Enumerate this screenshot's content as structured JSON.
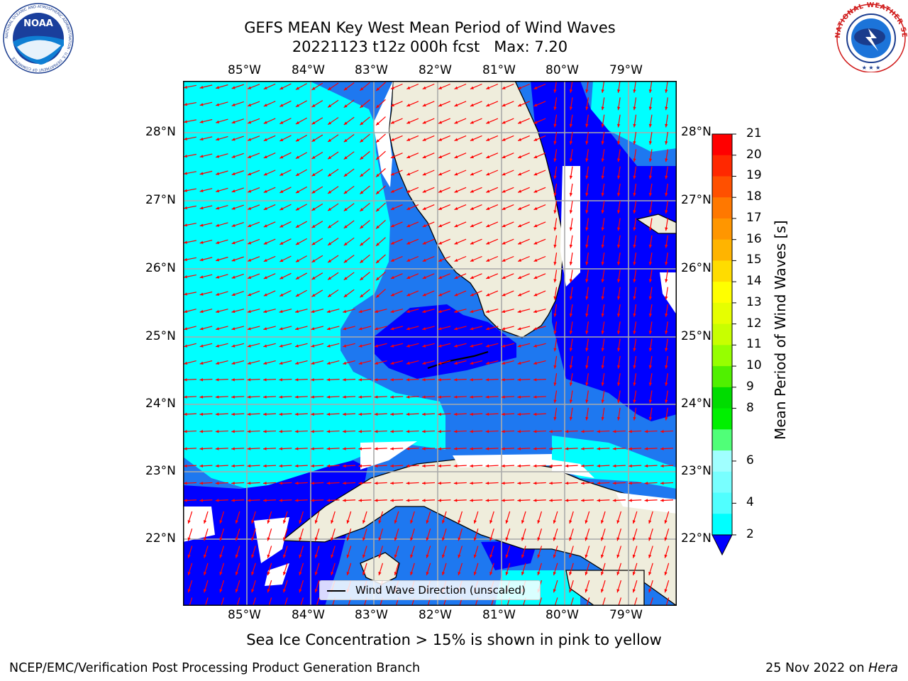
{
  "title": {
    "line1": "GEFS MEAN Key West Mean Period of Wind Waves",
    "line2": "20221123 t12z 000h fcst   Max: 7.20"
  },
  "map": {
    "lon_labels": [
      "85°W",
      "84°W",
      "83°W",
      "82°W",
      "81°W",
      "80°W",
      "79°W"
    ],
    "lat_labels": [
      "28°N",
      "27°N",
      "26°N",
      "25°N",
      "24°N",
      "23°N",
      "22°N"
    ],
    "legend_label": "Wind Wave Direction (unscaled)",
    "colors": {
      "land": "#efeddc",
      "cyan": "#00ffff",
      "mid_blue": "#1e78f0",
      "dark_blue": "#0000ff",
      "arrows": "#ff0000",
      "grid": "#aaaaaa",
      "coast": "#000000"
    }
  },
  "colorbar": {
    "label": "Mean Period of Wind Waves [s]",
    "ticks": [
      "21",
      "20",
      "19",
      "18",
      "17",
      "16",
      "15",
      "14",
      "13",
      "12",
      "11",
      "10",
      "9",
      "8",
      "6",
      "4",
      "2"
    ],
    "colors": [
      "#ff0000",
      "#ff2800",
      "#ff5000",
      "#ff7800",
      "#ff9600",
      "#ffb400",
      "#ffdc00",
      "#ffff00",
      "#e6ff00",
      "#c8ff00",
      "#96ff00",
      "#50f000",
      "#00dc00",
      "#00f000",
      "#50ff78",
      "#a0ffff",
      "#78ffff",
      "#50ffff",
      "#00ffff",
      "#1e78f0"
    ],
    "under_color": "#0000ff"
  },
  "logos": {
    "noaa_text": "NOAA",
    "noaa_ring": "NATIONAL OCEANIC AND ATMOSPHERIC ADMINISTRATION · U.S. DEPARTMENT OF COMMERCE",
    "nws_ring": "NATIONAL WEATHER SERVICE"
  },
  "footer": {
    "note": "Sea Ice Concentration > 15% is shown in pink to yellow",
    "left": "NCEP/EMC/Verification Post Processing Product Generation Branch",
    "date": "25 Nov 2022 on",
    "host": "Hera"
  }
}
